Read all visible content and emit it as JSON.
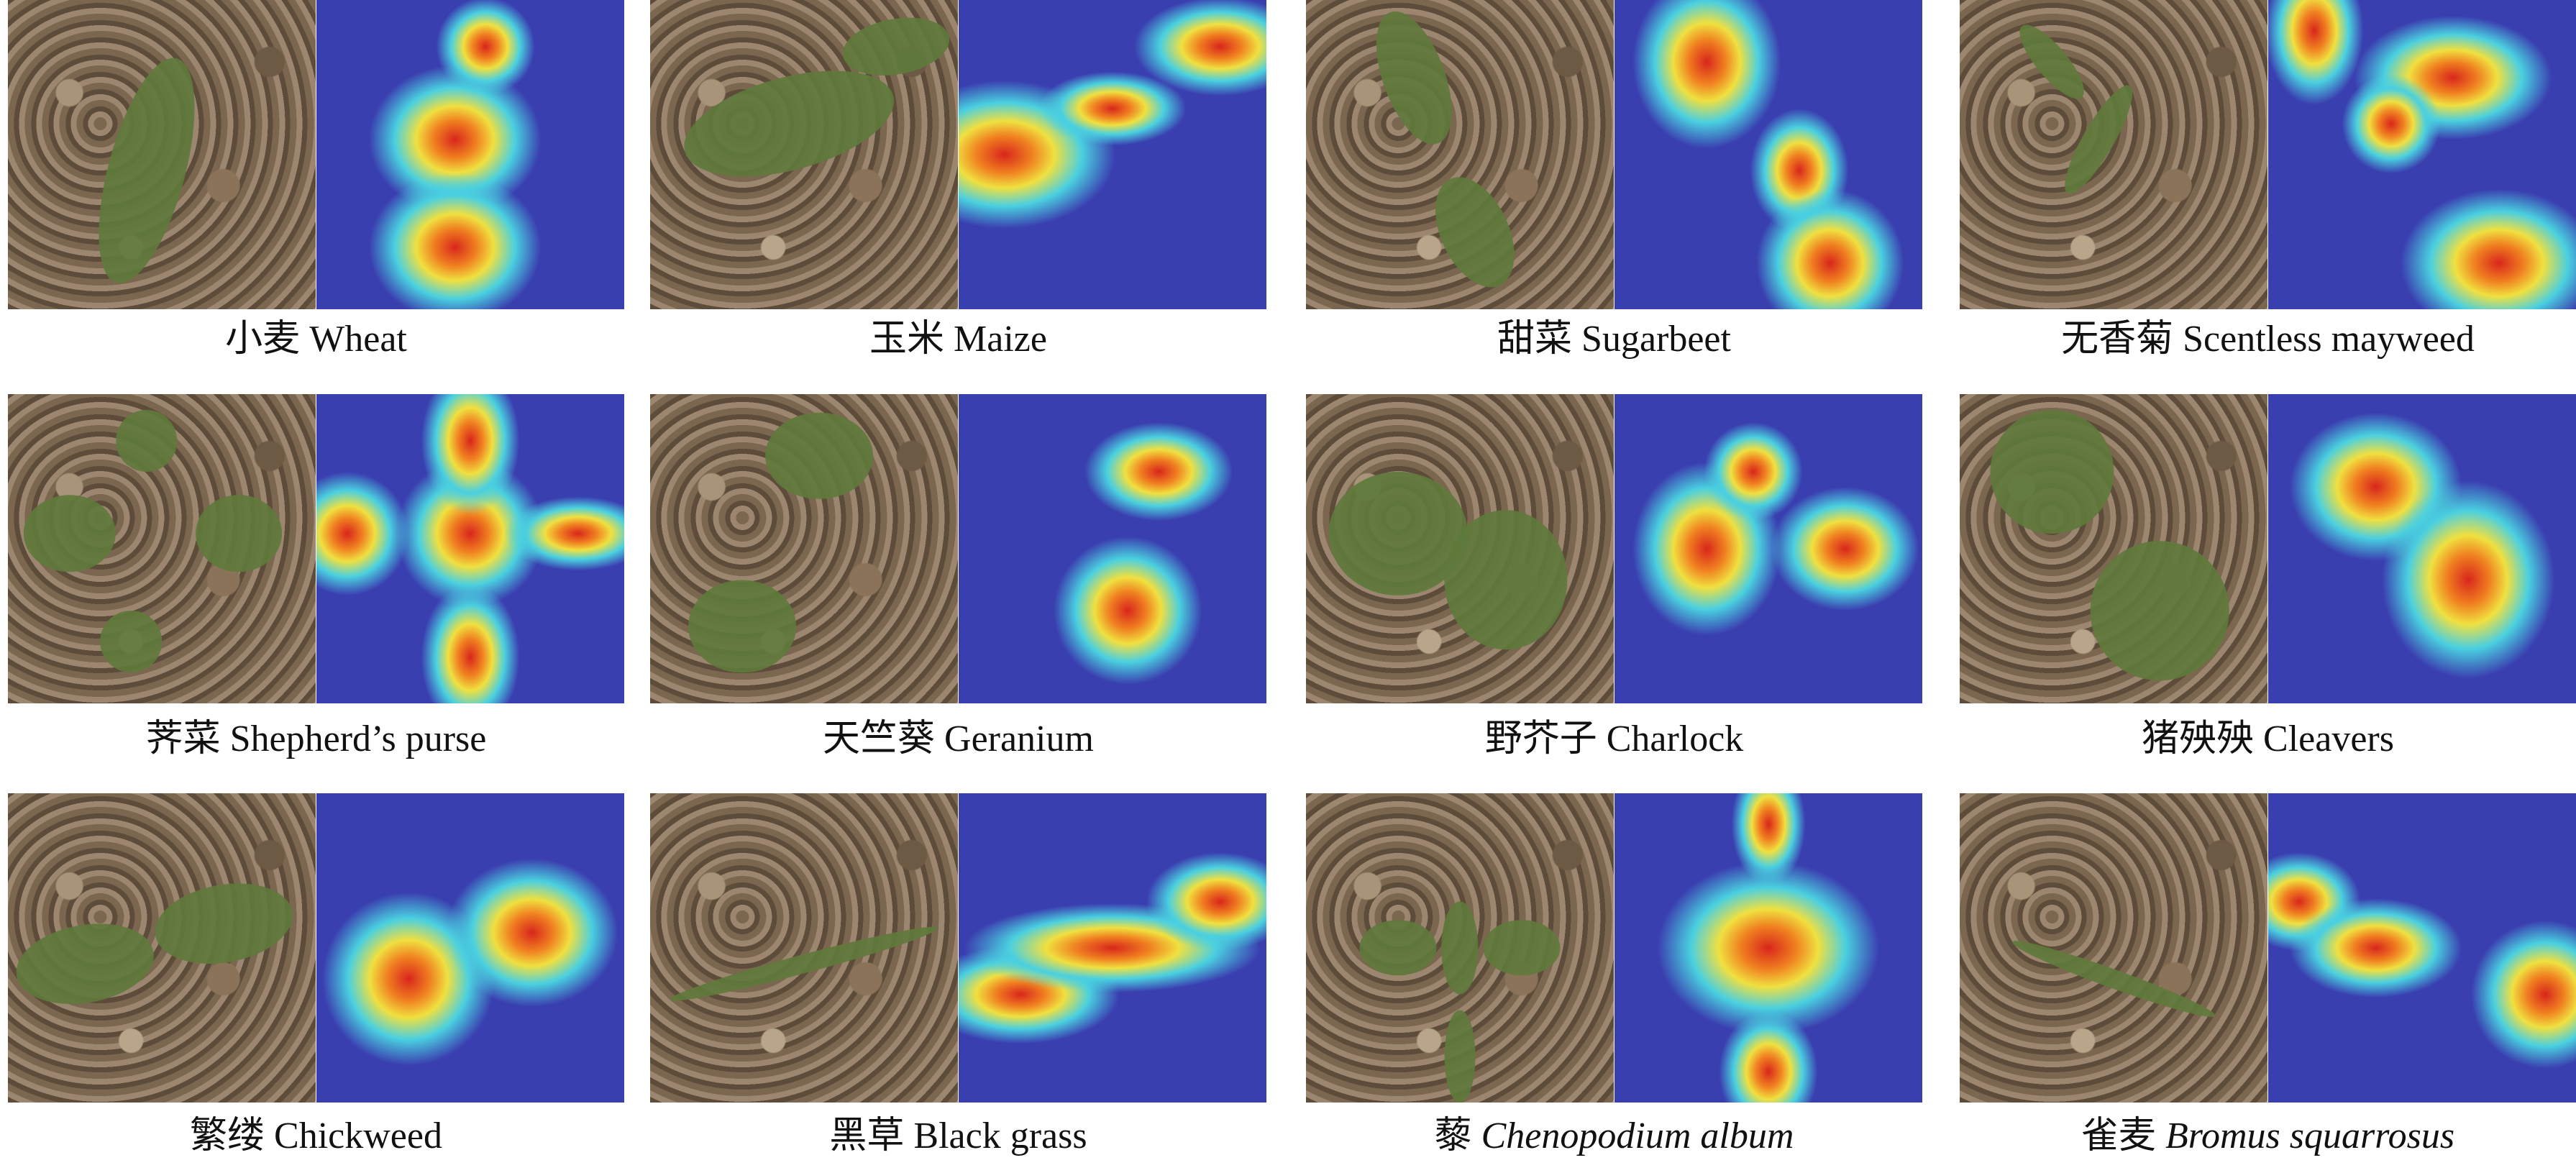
{
  "figure": {
    "panels": [
      {
        "zh": "小麦",
        "en": "Wheat",
        "italic": false
      },
      {
        "zh": "玉米",
        "en": "Maize",
        "italic": false
      },
      {
        "zh": "甜菜",
        "en": "Sugarbeet",
        "italic": false
      },
      {
        "zh": "无香菊",
        "en": "Scentless mayweed",
        "italic": false
      },
      {
        "zh": "荠菜",
        "en": "Shepherd’s purse",
        "italic": false
      },
      {
        "zh": "天竺葵",
        "en": "Geranium",
        "italic": false
      },
      {
        "zh": "野芥子",
        "en": "Charlock",
        "italic": false
      },
      {
        "zh": "猪殃殃",
        "en": "Cleavers",
        "italic": false
      },
      {
        "zh": "繁缕",
        "en": "Chickweed",
        "italic": false
      },
      {
        "zh": "黑草",
        "en": "Black grass",
        "italic": false
      },
      {
        "zh": "藜",
        "en": "Chenopodium album",
        "italic": true
      },
      {
        "zh": "雀麦",
        "en": "Bromus squarrosus",
        "italic": true
      }
    ],
    "colors": {
      "heat_low": "#3a3fb0",
      "heat_mid": "#4ad0e0",
      "heat_high": "#d8261c"
    }
  }
}
